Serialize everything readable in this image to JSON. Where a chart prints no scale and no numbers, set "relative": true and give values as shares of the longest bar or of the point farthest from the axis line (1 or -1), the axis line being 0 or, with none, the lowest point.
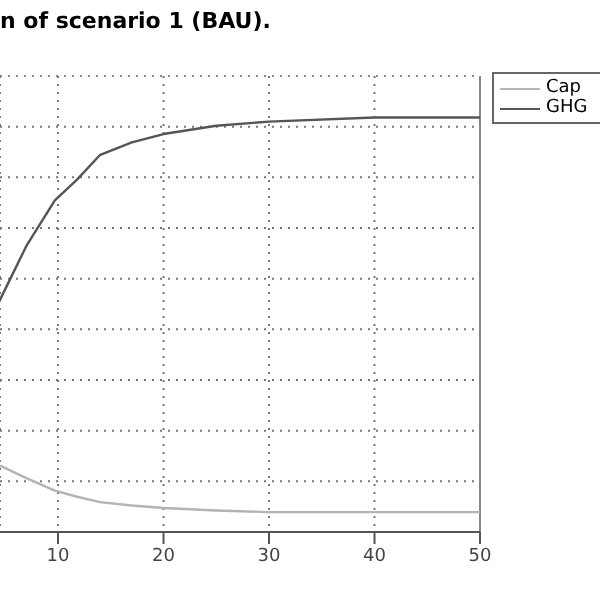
{
  "chart_data": {
    "type": "line",
    "title": "n of scenario 1 (BAU).",
    "relative": true,
    "x": [
      4.5,
      7,
      9.7,
      11.8,
      14,
      17,
      20,
      25,
      30,
      40,
      50
    ],
    "series": [
      {
        "name": "Cap",
        "color": "#b4b4b4",
        "values": [
          0.16,
          0.13,
          0.1,
          0.085,
          0.072,
          0.064,
          0.058,
          0.052,
          0.048,
          0.048,
          0.048
        ]
      },
      {
        "name": "GHG",
        "color": "#555555",
        "values": [
          0.56,
          0.69,
          0.8,
          0.85,
          0.91,
          0.94,
          0.96,
          0.98,
          0.99,
          1,
          1
        ]
      }
    ],
    "xlim": [
      4.5,
      50
    ],
    "xticks": [
      10,
      20,
      30,
      40,
      50
    ],
    "grid": true,
    "legend": "top right",
    "marker": "none",
    "line_style": "solid"
  }
}
